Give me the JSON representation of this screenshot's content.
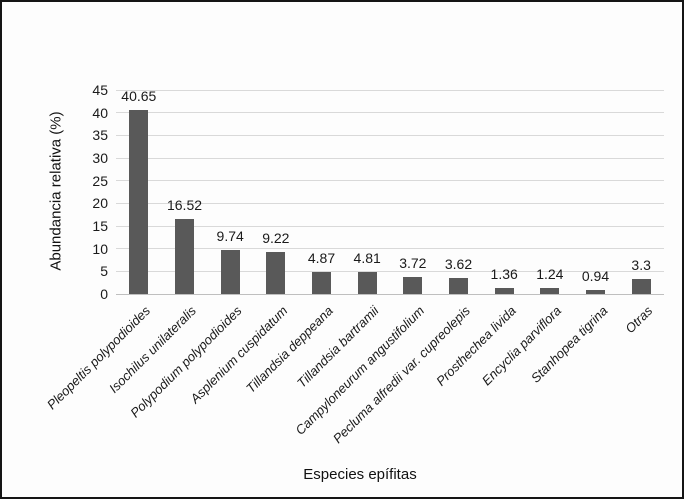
{
  "figure": {
    "background": "#fdfdfd",
    "border_color": "#151515"
  },
  "chart_data": {
    "type": "bar",
    "title": "",
    "xlabel": "Especies epífitas",
    "ylabel": "Abundancia relativa (%)",
    "categories": [
      "Pleopeltis polypodioides",
      "Isochilus unilateralis",
      "Polypodium polypodioides",
      "Asplenium cuspidatum",
      "Tillandsia deppeana",
      "Tillandsia bartramii",
      "Campyloneurum angustifolium",
      "Pecluma alfredii var. cupreolepis",
      "Prosthechea livida",
      "Encyclia parviflora",
      "Stanhopea tigrina",
      "Otras"
    ],
    "values": [
      40.65,
      16.52,
      9.74,
      9.22,
      4.87,
      4.81,
      3.72,
      3.62,
      1.36,
      1.24,
      0.94,
      3.3
    ],
    "value_labels": [
      "40.65",
      "16.52",
      "9.74",
      "9.22",
      "4.87",
      "4.81",
      "3.72",
      "3.62",
      "1.36",
      "1.24",
      "0.94",
      "3.3"
    ],
    "ylim": [
      0,
      45
    ],
    "yticks": [
      0,
      5,
      10,
      15,
      20,
      25,
      30,
      35,
      40,
      45
    ],
    "grid": true,
    "legend": "none",
    "category_label_rotation_deg": 45,
    "category_label_style": "italic",
    "bar_color": "#595959",
    "gridline_color": "#d9d9d9",
    "axisline_color": "#bfbfbf",
    "text_color": "#1a1a1a"
  }
}
